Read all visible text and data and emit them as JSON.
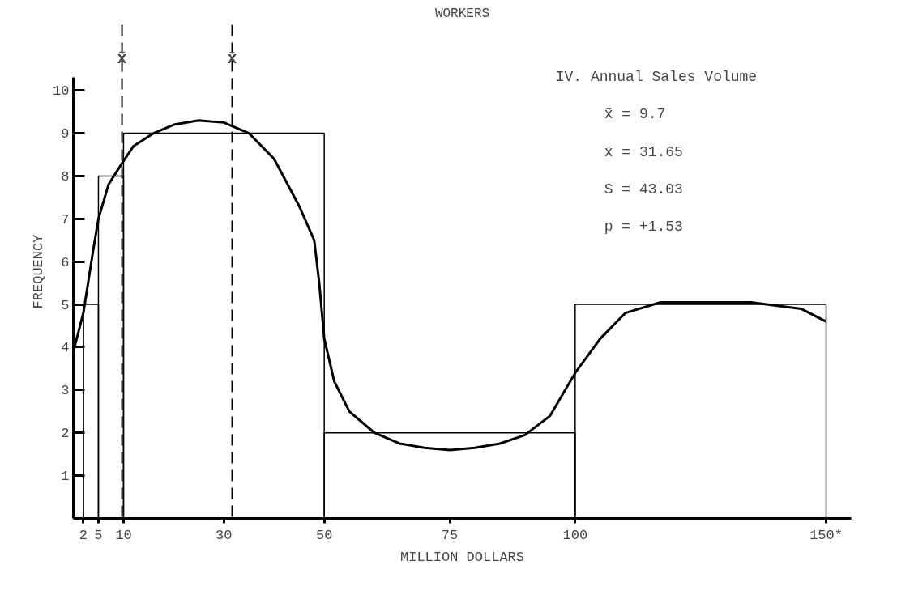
{
  "chart_data": {
    "type": "histogram",
    "title": "WORKERS",
    "xlabel": "MILLION DOLLARS",
    "ylabel": "FREQUENCY",
    "xlim": [
      0,
      155
    ],
    "ylim": [
      0,
      10.3
    ],
    "xticks": [
      2,
      5,
      10,
      30,
      50,
      75,
      100,
      {
        "value": 150,
        "label": "150*"
      }
    ],
    "yticks": [
      1,
      2,
      3,
      4,
      5,
      6,
      7,
      8,
      9,
      10
    ],
    "series": [
      {
        "color": "#000000",
        "bins": [
          0,
          2,
          5,
          10,
          50,
          100,
          150
        ],
        "values": [
          5,
          5,
          8,
          9,
          2,
          5
        ]
      },
      {
        "type": "line",
        "color": "#000000",
        "x": [
          0,
          2,
          4,
          5,
          7,
          9.7,
          12,
          16,
          20,
          25,
          30,
          35,
          40,
          45,
          48,
          49,
          50,
          52,
          55,
          60,
          65,
          70,
          75,
          80,
          85,
          90,
          95,
          100,
          105,
          110,
          117,
          125,
          135,
          145,
          150
        ],
        "values": [
          3.9,
          4.8,
          6.3,
          7.0,
          7.8,
          8.3,
          8.7,
          9.0,
          9.2,
          9.3,
          9.25,
          9.0,
          8.4,
          7.3,
          6.5,
          5.5,
          4.2,
          3.2,
          2.5,
          2.0,
          1.75,
          1.65,
          1.6,
          1.65,
          1.75,
          1.95,
          2.4,
          3.4,
          4.2,
          4.8,
          5.05,
          5.05,
          5.05,
          4.9,
          4.6
        ]
      }
    ],
    "ref_lines": [
      {
        "axis": "x",
        "value": 9.7,
        "label": "x̃",
        "line_style": "dashed",
        "color": "#000000"
      },
      {
        "axis": "x",
        "value": 31.65,
        "label": "x̄",
        "line_style": "dashed",
        "color": "#000000"
      }
    ],
    "annotations": [
      "IV.  Annual Sales Volume",
      "x̃ = 9.7",
      "x̄ = 31.65",
      "S = 43.03",
      "p = +1.53"
    ]
  }
}
